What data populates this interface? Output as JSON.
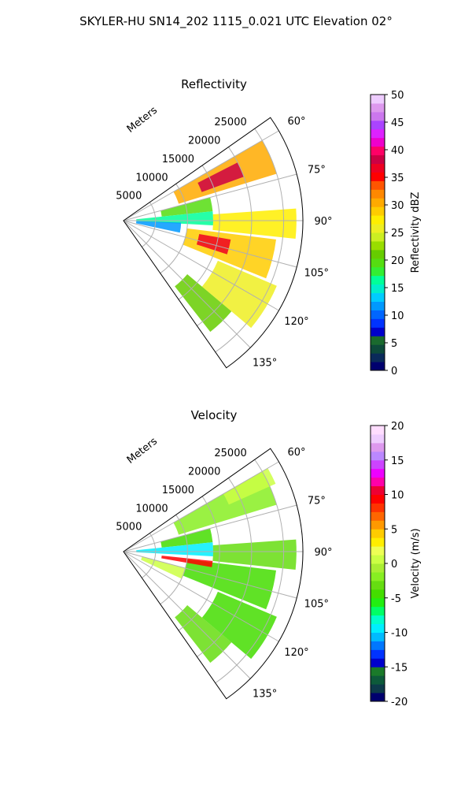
{
  "figure_title": "SKYLER-HU  SN14_202  1115_0.021 UTC Elevation 02°",
  "colors": {
    "grid": "#b0b0b0",
    "axes": "#000000",
    "reflectivity_scale": [
      "#00006e",
      "#0a2a5a",
      "#0d4a3a",
      "#1a6a2e",
      "#0000cc",
      "#0033ff",
      "#0066ff",
      "#0099ff",
      "#00ccff",
      "#00eecc",
      "#00ff99",
      "#33ee33",
      "#55dd11",
      "#66cc00",
      "#99dd00",
      "#ccee22",
      "#eeee22",
      "#ffee00",
      "#ffcc00",
      "#ffaa00",
      "#ff8800",
      "#ff5500",
      "#ff0000",
      "#ee0022",
      "#cc0044",
      "#ff0066",
      "#ee00cc",
      "#dd22ff",
      "#aa44ff",
      "#cc77ee",
      "#dd99ee",
      "#eeccff"
    ],
    "velocity_scale": [
      "#00006e",
      "#0d3a4a",
      "#0d5a3a",
      "#1a7a2a",
      "#0000cc",
      "#0033ff",
      "#0077ff",
      "#00bbff",
      "#00eeff",
      "#00ffcc",
      "#00ff66",
      "#22ee11",
      "#44dd00",
      "#66dd11",
      "#88ee22",
      "#aaee33",
      "#ccff44",
      "#eeff55",
      "#ffee00",
      "#ffcc00",
      "#ff9900",
      "#ff6600",
      "#ff3300",
      "#ff0000",
      "#ee0033",
      "#ff00aa",
      "#ee00ff",
      "#cc44ff",
      "#bb88ff",
      "#dd99ee",
      "#eeccff",
      "#ffddff"
    ]
  },
  "chart_data": [
    {
      "type": "heatmap",
      "projection": "polar-sector",
      "title": "Reflectivity",
      "radial_label": "Meters",
      "radial_ticks": [
        5000,
        10000,
        15000,
        20000,
        25000
      ],
      "radial_tick_labels": [
        "5000",
        "10000",
        "15000",
        "20000",
        "25000"
      ],
      "radial_max": 28000,
      "azimuth_range_deg": [
        55,
        145
      ],
      "azimuth_ticks_deg": [
        60,
        75,
        90,
        105,
        120,
        135
      ],
      "azimuth_tick_labels": [
        "60°",
        "75°",
        "90°",
        "105°",
        "120°",
        "135°"
      ],
      "grid": true,
      "colorbar": {
        "label": "Reflectivity dBZ",
        "range": [
          0,
          50
        ],
        "ticks": [
          0,
          5,
          10,
          15,
          20,
          25,
          30,
          35,
          40,
          45,
          50
        ],
        "tick_labels": [
          "0",
          "5",
          "10",
          "15",
          "20",
          "25",
          "30",
          "35",
          "40",
          "45",
          "50"
        ]
      },
      "echo_regions": [
        {
          "az": [
            60,
            73
          ],
          "range": [
            9000,
            25000
          ],
          "level": 30
        },
        {
          "az": [
            63,
            70
          ],
          "range": [
            13000,
            20000
          ],
          "level": 38
        },
        {
          "az": [
            75,
            84
          ],
          "range": [
            6000,
            14000
          ],
          "level": 20
        },
        {
          "az": [
            84,
            93
          ],
          "range": [
            2000,
            14000
          ],
          "level": 17
        },
        {
          "az": [
            86,
            96
          ],
          "range": [
            14000,
            27000
          ],
          "level": 28
        },
        {
          "az": [
            97,
            112
          ],
          "range": [
            10000,
            24000
          ],
          "level": 29
        },
        {
          "az": [
            100,
            108
          ],
          "range": [
            12000,
            17000
          ],
          "level": 37
        },
        {
          "az": [
            113,
            130
          ],
          "range": [
            16000,
            26000
          ],
          "level": 26
        },
        {
          "az": [
            130,
            142
          ],
          "range": [
            13000,
            22000
          ],
          "level": 21
        },
        {
          "az": [
            92,
            102
          ],
          "range": [
            2000,
            9000
          ],
          "level": 12
        }
      ]
    },
    {
      "type": "heatmap",
      "projection": "polar-sector",
      "title": "Velocity",
      "radial_label": "Meters",
      "radial_ticks": [
        5000,
        10000,
        15000,
        20000,
        25000
      ],
      "radial_tick_labels": [
        "5000",
        "10000",
        "15000",
        "20000",
        "25000"
      ],
      "radial_max": 28000,
      "azimuth_range_deg": [
        55,
        145
      ],
      "azimuth_ticks_deg": [
        60,
        75,
        90,
        105,
        120,
        135
      ],
      "azimuth_tick_labels": [
        "60°",
        "75°",
        "90°",
        "105°",
        "120°",
        "135°"
      ],
      "grid": true,
      "colorbar": {
        "label": "Velocity (m/s)",
        "range": [
          -20,
          20
        ],
        "ticks": [
          -20,
          -15,
          -10,
          -5,
          0,
          5,
          10,
          15,
          20
        ],
        "tick_labels": [
          "-20",
          "-15",
          "-10",
          "-5",
          "0",
          "5",
          "10",
          "15",
          "20"
        ]
      },
      "echo_regions": [
        {
          "az": [
            60,
            73
          ],
          "range": [
            9000,
            25000
          ],
          "level": -2
        },
        {
          "az": [
            60,
            66
          ],
          "range": [
            18000,
            26000
          ],
          "level": 1
        },
        {
          "az": [
            75,
            84
          ],
          "range": [
            6000,
            14000
          ],
          "level": -4
        },
        {
          "az": [
            84,
            93
          ],
          "range": [
            2000,
            14000
          ],
          "level": -9
        },
        {
          "az": [
            86,
            96
          ],
          "range": [
            14000,
            27000
          ],
          "level": -3
        },
        {
          "az": [
            97,
            112
          ],
          "range": [
            10000,
            24000
          ],
          "level": -5
        },
        {
          "az": [
            113,
            130
          ],
          "range": [
            16000,
            26000
          ],
          "level": -4
        },
        {
          "az": [
            130,
            142
          ],
          "range": [
            13000,
            22000
          ],
          "level": -3
        },
        {
          "az": [
            96,
            100
          ],
          "range": [
            6000,
            14000
          ],
          "level": 9
        },
        {
          "az": [
            105,
            115
          ],
          "range": [
            3000,
            10000
          ],
          "level": 1
        }
      ]
    }
  ]
}
